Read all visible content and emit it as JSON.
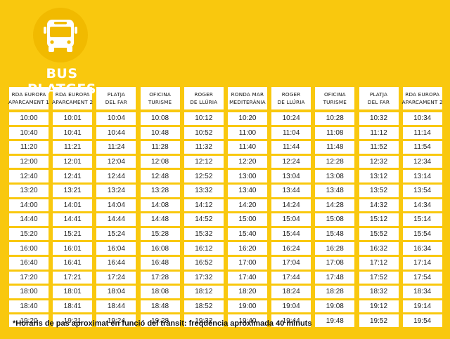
{
  "title": "BUS PLATGES",
  "colors": {
    "background": "#F9C80E",
    "cell": "#FFFFFF",
    "logo_circle": "#F1BA00"
  },
  "logo": {
    "icon": "bus-icon"
  },
  "stops": [
    {
      "line1": "RDA EUROPA",
      "line2": "APARCAMENT 1",
      "times": [
        "10:00",
        "10:40",
        "11:20",
        "12:00",
        "12:40",
        "13:20",
        "14:00",
        "14:40",
        "15:20",
        "16:00",
        "16:40",
        "17:20",
        "18:00",
        "18:40",
        "19:20"
      ]
    },
    {
      "line1": "RDA EUROPA",
      "line2": "APARCAMENT 2",
      "times": [
        "10:01",
        "10:41",
        "11:21",
        "12:01",
        "12:41",
        "13:21",
        "14:01",
        "14:41",
        "15:21",
        "16:01",
        "16:41",
        "17:21",
        "18:01",
        "18:41",
        "19:21"
      ]
    },
    {
      "line1": "PLATJA",
      "line2": "DEL FAR",
      "times": [
        "10:04",
        "10:44",
        "11:24",
        "12:04",
        "12:44",
        "13:24",
        "14:04",
        "14:44",
        "15:24",
        "16:04",
        "16:44",
        "17:24",
        "18:04",
        "18:44",
        "19:24"
      ]
    },
    {
      "line1": "OFICINA",
      "line2": "TURISME",
      "times": [
        "10:08",
        "10:48",
        "11:28",
        "12:08",
        "12:48",
        "13:28",
        "14:08",
        "14:48",
        "15:28",
        "16:08",
        "16:48",
        "17:28",
        "18:08",
        "18:48",
        "19:28"
      ]
    },
    {
      "line1": "ROGER",
      "line2": "DE LLÚRIA",
      "times": [
        "10:12",
        "10:52",
        "11:32",
        "12:12",
        "12:52",
        "13:32",
        "14:12",
        "14:52",
        "15:32",
        "16:12",
        "16:52",
        "17:32",
        "18:12",
        "18:52",
        "19:32"
      ]
    },
    {
      "line1": "RONDA MAR",
      "line2": "MEDITERÀNIA",
      "times": [
        "10:20",
        "11:00",
        "11:40",
        "12:20",
        "13:00",
        "13:40",
        "14:20",
        "15:00",
        "15:40",
        "16:20",
        "17:00",
        "17:40",
        "18:20",
        "19:00",
        "19:40"
      ]
    },
    {
      "line1": "ROGER",
      "line2": "DE LLÚRIA",
      "times": [
        "10:24",
        "11:04",
        "11:44",
        "12:24",
        "13:04",
        "13:44",
        "14:24",
        "15:04",
        "15:44",
        "16:24",
        "17:04",
        "17:44",
        "18:24",
        "19:04",
        "19:44"
      ]
    },
    {
      "line1": "OFICINA",
      "line2": "TURISME",
      "times": [
        "10:28",
        "11:08",
        "11:48",
        "12:28",
        "13:08",
        "13:48",
        "14:28",
        "15:08",
        "15:48",
        "16:28",
        "17:08",
        "17:48",
        "18:28",
        "19:08",
        "19:48"
      ]
    },
    {
      "line1": "PLATJA",
      "line2": "DEL FAR",
      "times": [
        "10:32",
        "11:12",
        "11:52",
        "12:32",
        "13:12",
        "13:52",
        "14:32",
        "15:12",
        "15:52",
        "16:32",
        "17:12",
        "17:52",
        "18:32",
        "19:12",
        "19:52"
      ]
    },
    {
      "line1": "RDA EUROPA",
      "line2": "APARCAMENT 2",
      "times": [
        "10:34",
        "11:14",
        "11:54",
        "12:34",
        "13:14",
        "13:54",
        "14:34",
        "15:14",
        "15:54",
        "16:34",
        "17:14",
        "17:54",
        "18:34",
        "19:14",
        "19:54"
      ]
    }
  ],
  "footnote": "*Horaris de pas aproximat en funció del trànsit: freqüència aproximada 40 minuts"
}
